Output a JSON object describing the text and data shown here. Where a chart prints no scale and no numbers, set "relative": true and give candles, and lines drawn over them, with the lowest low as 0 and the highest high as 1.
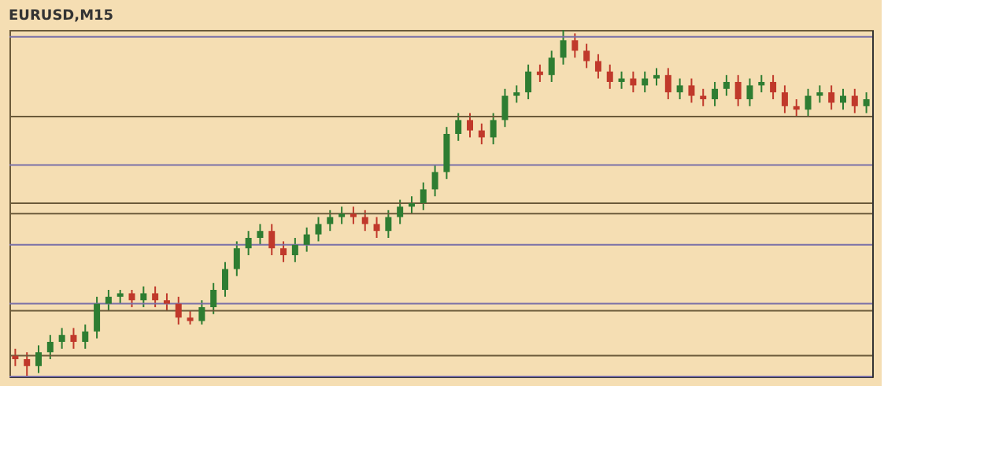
{
  "chart_data": {
    "type": "candlestick",
    "title": "EURUSD,M15",
    "relative": true,
    "tick_labels": false,
    "grid": false,
    "categories": [
      null,
      null,
      null,
      null,
      null,
      null,
      null,
      null,
      null,
      null,
      null,
      null,
      null,
      null,
      null,
      null,
      null,
      null,
      null,
      null,
      null,
      null,
      null,
      null,
      null,
      null,
      null,
      null,
      null,
      null,
      null,
      null,
      null,
      null,
      null,
      null,
      null,
      null,
      null,
      null,
      null,
      null,
      null,
      null,
      null,
      null,
      null,
      null,
      null,
      null,
      null,
      null,
      null,
      null,
      null,
      null,
      null,
      null,
      null,
      null,
      null,
      null,
      null,
      null,
      null,
      null,
      null,
      null,
      null,
      null,
      null,
      null,
      null,
      null
    ],
    "colors": [
      "#c0392b",
      "#c0392b",
      "#2e7d32",
      "#2e7d32",
      "#2e7d32",
      "#c0392b",
      "#2e7d32",
      "#2e7d32",
      "#2e7d32",
      "#2e7d32",
      "#c0392b",
      "#2e7d32",
      "#c0392b",
      "#c0392b",
      "#c0392b",
      "#c0392b",
      "#2e7d32",
      "#2e7d32",
      "#2e7d32",
      "#2e7d32",
      "#2e7d32",
      "#2e7d32",
      "#c0392b",
      "#c0392b",
      "#2e7d32",
      "#2e7d32",
      "#2e7d32",
      "#2e7d32",
      "#2e7d32",
      "#c0392b",
      "#c0392b",
      "#c0392b",
      "#2e7d32",
      "#2e7d32",
      "#2e7d32",
      "#2e7d32",
      "#2e7d32",
      "#2e7d32",
      "#2e7d32",
      "#c0392b",
      "#c0392b",
      "#2e7d32",
      "#2e7d32",
      "#2e7d32",
      "#2e7d32",
      "#c0392b",
      "#2e7d32",
      "#2e7d32",
      "#c0392b",
      "#c0392b",
      "#c0392b",
      "#c0392b",
      "#2e7d32",
      "#c0392b",
      "#2e7d32",
      "#2e7d32",
      "#c0392b",
      "#2e7d32",
      "#c0392b",
      "#c0392b",
      "#2e7d32",
      "#2e7d32",
      "#c0392b",
      "#2e7d32",
      "#2e7d32",
      "#c0392b",
      "#c0392b",
      "#c0392b",
      "#2e7d32",
      "#2e7d32",
      "#c0392b",
      "#2e7d32",
      "#c0392b",
      "#2e7d32"
    ],
    "ohlc": [
      [
        0.06,
        0.08,
        0.03,
        0.05
      ],
      [
        0.05,
        0.07,
        0.0,
        0.03
      ],
      [
        0.03,
        0.09,
        0.01,
        0.07
      ],
      [
        0.07,
        0.12,
        0.05,
        0.1
      ],
      [
        0.1,
        0.14,
        0.08,
        0.12
      ],
      [
        0.12,
        0.14,
        0.08,
        0.1
      ],
      [
        0.1,
        0.15,
        0.08,
        0.13
      ],
      [
        0.13,
        0.23,
        0.11,
        0.21
      ],
      [
        0.21,
        0.25,
        0.19,
        0.23
      ],
      [
        0.23,
        0.25,
        0.21,
        0.24
      ],
      [
        0.24,
        0.25,
        0.2,
        0.22
      ],
      [
        0.22,
        0.26,
        0.2,
        0.24
      ],
      [
        0.24,
        0.26,
        0.2,
        0.22
      ],
      [
        0.22,
        0.24,
        0.19,
        0.21
      ],
      [
        0.21,
        0.23,
        0.15,
        0.17
      ],
      [
        0.17,
        0.19,
        0.15,
        0.16
      ],
      [
        0.16,
        0.22,
        0.15,
        0.2
      ],
      [
        0.2,
        0.27,
        0.18,
        0.25
      ],
      [
        0.25,
        0.33,
        0.23,
        0.31
      ],
      [
        0.31,
        0.39,
        0.29,
        0.37
      ],
      [
        0.37,
        0.42,
        0.35,
        0.4
      ],
      [
        0.4,
        0.44,
        0.38,
        0.42
      ],
      [
        0.42,
        0.44,
        0.35,
        0.37
      ],
      [
        0.37,
        0.39,
        0.33,
        0.35
      ],
      [
        0.35,
        0.4,
        0.33,
        0.38
      ],
      [
        0.38,
        0.43,
        0.36,
        0.41
      ],
      [
        0.41,
        0.46,
        0.39,
        0.44
      ],
      [
        0.44,
        0.48,
        0.42,
        0.46
      ],
      [
        0.46,
        0.49,
        0.44,
        0.47
      ],
      [
        0.47,
        0.49,
        0.44,
        0.46
      ],
      [
        0.46,
        0.48,
        0.42,
        0.44
      ],
      [
        0.44,
        0.46,
        0.4,
        0.42
      ],
      [
        0.42,
        0.48,
        0.4,
        0.46
      ],
      [
        0.46,
        0.51,
        0.44,
        0.49
      ],
      [
        0.49,
        0.52,
        0.47,
        0.5
      ],
      [
        0.5,
        0.56,
        0.48,
        0.54
      ],
      [
        0.54,
        0.61,
        0.52,
        0.59
      ],
      [
        0.59,
        0.72,
        0.57,
        0.7
      ],
      [
        0.7,
        0.76,
        0.68,
        0.74
      ],
      [
        0.74,
        0.76,
        0.69,
        0.71
      ],
      [
        0.71,
        0.73,
        0.67,
        0.69
      ],
      [
        0.69,
        0.76,
        0.67,
        0.74
      ],
      [
        0.74,
        0.83,
        0.72,
        0.81
      ],
      [
        0.81,
        0.84,
        0.79,
        0.82
      ],
      [
        0.82,
        0.9,
        0.8,
        0.88
      ],
      [
        0.88,
        0.9,
        0.85,
        0.87
      ],
      [
        0.87,
        0.94,
        0.85,
        0.92
      ],
      [
        0.92,
        1.0,
        0.9,
        0.97
      ],
      [
        0.97,
        0.99,
        0.92,
        0.94
      ],
      [
        0.94,
        0.96,
        0.89,
        0.91
      ],
      [
        0.91,
        0.93,
        0.86,
        0.88
      ],
      [
        0.88,
        0.9,
        0.83,
        0.85
      ],
      [
        0.85,
        0.88,
        0.83,
        0.86
      ],
      [
        0.86,
        0.88,
        0.82,
        0.84
      ],
      [
        0.84,
        0.88,
        0.82,
        0.86
      ],
      [
        0.86,
        0.89,
        0.84,
        0.87
      ],
      [
        0.87,
        0.89,
        0.8,
        0.82
      ],
      [
        0.82,
        0.86,
        0.8,
        0.84
      ],
      [
        0.84,
        0.86,
        0.79,
        0.81
      ],
      [
        0.81,
        0.83,
        0.78,
        0.8
      ],
      [
        0.8,
        0.85,
        0.78,
        0.83
      ],
      [
        0.83,
        0.87,
        0.81,
        0.85
      ],
      [
        0.85,
        0.87,
        0.78,
        0.8
      ],
      [
        0.8,
        0.86,
        0.78,
        0.84
      ],
      [
        0.84,
        0.87,
        0.82,
        0.85
      ],
      [
        0.85,
        0.87,
        0.8,
        0.82
      ],
      [
        0.82,
        0.84,
        0.76,
        0.78
      ],
      [
        0.78,
        0.8,
        0.75,
        0.77
      ],
      [
        0.77,
        0.83,
        0.75,
        0.81
      ],
      [
        0.81,
        0.84,
        0.79,
        0.82
      ],
      [
        0.82,
        0.84,
        0.77,
        0.79
      ],
      [
        0.79,
        0.83,
        0.77,
        0.81
      ],
      [
        0.81,
        0.83,
        0.76,
        0.78
      ],
      [
        0.78,
        0.82,
        0.76,
        0.8
      ]
    ],
    "ref_lines": [
      {
        "axis": "y",
        "value": 0.98,
        "color": "#7a70a8"
      },
      {
        "axis": "y",
        "value": 0.75,
        "color": "#6b5a3a"
      },
      {
        "axis": "y",
        "value": 0.61,
        "color": "#7a70a8"
      },
      {
        "axis": "y",
        "value": 0.5,
        "color": "#6b5a3a"
      },
      {
        "axis": "y",
        "value": 0.47,
        "color": "#6b5a3a"
      },
      {
        "axis": "y",
        "value": 0.38,
        "color": "#7a70a8"
      },
      {
        "axis": "y",
        "value": 0.21,
        "color": "#7a70a8"
      },
      {
        "axis": "y",
        "value": 0.19,
        "color": "#6b5a3a"
      },
      {
        "axis": "y",
        "value": 0.06,
        "color": "#6b5a3a"
      },
      {
        "axis": "y",
        "value": 0.0,
        "color": "#7a70a8"
      }
    ]
  }
}
